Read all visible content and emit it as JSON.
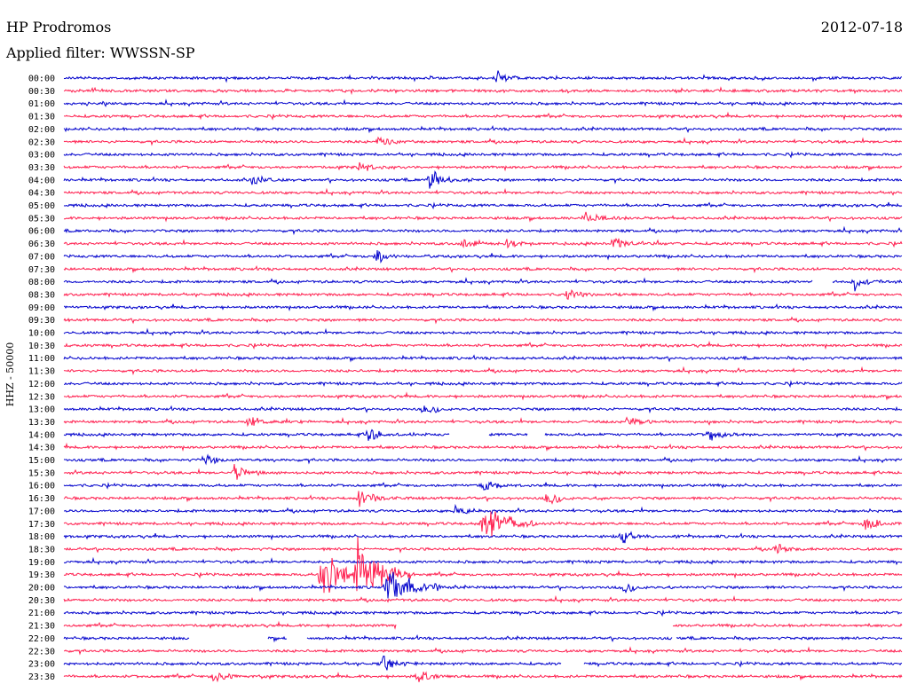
{
  "header": {
    "station": "HP Prodromos",
    "date": "2012-07-18",
    "filter": "Applied filter: WWSSN-SP"
  },
  "colors": {
    "odd_row": "#0000cc",
    "even_row": "#ff1f4f"
  },
  "chart_data": {
    "type": "line",
    "ylabel": "HHZ - 50000",
    "row_labels": [
      "00:00",
      "00:30",
      "01:00",
      "01:30",
      "02:00",
      "02:30",
      "03:00",
      "03:30",
      "04:00",
      "04:30",
      "05:00",
      "05:30",
      "06:00",
      "06:30",
      "07:00",
      "07:30",
      "08:00",
      "08:30",
      "09:00",
      "09:30",
      "10:00",
      "10:30",
      "11:00",
      "11:30",
      "12:00",
      "12:30",
      "13:00",
      "13:30",
      "14:00",
      "14:30",
      "15:00",
      "15:30",
      "16:00",
      "16:30",
      "17:00",
      "17:30",
      "18:00",
      "18:30",
      "19:00",
      "19:30",
      "20:00",
      "20:30",
      "21:00",
      "21:30",
      "22:00",
      "22:30",
      "23:00",
      "23:30"
    ],
    "row_minutes": 30,
    "events": [
      {
        "row": 0,
        "minute": 15.5,
        "amplitude": 8
      },
      {
        "row": 5,
        "minute": 11.3,
        "amplitude": 8
      },
      {
        "row": 7,
        "minute": 10.6,
        "amplitude": 8
      },
      {
        "row": 8,
        "minute": 6.8,
        "amplitude": 10
      },
      {
        "row": 8,
        "minute": 13.1,
        "amplitude": 16
      },
      {
        "row": 11,
        "minute": 18.7,
        "amplitude": 9
      },
      {
        "row": 13,
        "minute": 14.3,
        "amplitude": 7
      },
      {
        "row": 13,
        "minute": 15.9,
        "amplitude": 7
      },
      {
        "row": 13,
        "minute": 19.7,
        "amplitude": 10
      },
      {
        "row": 14,
        "minute": 11.2,
        "amplitude": 9
      },
      {
        "row": 16,
        "minute": 28.3,
        "amplitude": 10
      },
      {
        "row": 17,
        "minute": 18.0,
        "amplitude": 9
      },
      {
        "row": 26,
        "minute": 12.9,
        "amplitude": 5
      },
      {
        "row": 27,
        "minute": 6.6,
        "amplitude": 8
      },
      {
        "row": 27,
        "minute": 20.2,
        "amplitude": 9
      },
      {
        "row": 28,
        "minute": 10.9,
        "amplitude": 9
      },
      {
        "row": 28,
        "minute": 23.1,
        "amplitude": 10
      },
      {
        "row": 30,
        "minute": 5.0,
        "amplitude": 9
      },
      {
        "row": 31,
        "minute": 6.1,
        "amplitude": 11
      },
      {
        "row": 32,
        "minute": 15.0,
        "amplitude": 9
      },
      {
        "row": 33,
        "minute": 10.6,
        "amplitude": 16
      },
      {
        "row": 33,
        "minute": 17.3,
        "amplitude": 9
      },
      {
        "row": 34,
        "minute": 14.0,
        "amplitude": 8
      },
      {
        "row": 35,
        "minute": 15.0,
        "amplitude": 22
      },
      {
        "row": 35,
        "minute": 28.7,
        "amplitude": 14
      },
      {
        "row": 36,
        "minute": 20.0,
        "amplitude": 9
      },
      {
        "row": 37,
        "minute": 25.5,
        "amplitude": 7
      },
      {
        "row": 39,
        "minute": 9.2,
        "amplitude": 42
      },
      {
        "row": 39,
        "minute": 10.5,
        "amplitude": 40
      },
      {
        "row": 40,
        "minute": 11.6,
        "amplitude": 24
      },
      {
        "row": 40,
        "minute": 20.0,
        "amplitude": 7
      },
      {
        "row": 46,
        "minute": 11.4,
        "amplitude": 11
      },
      {
        "row": 47,
        "minute": 5.4,
        "amplitude": 9
      },
      {
        "row": 47,
        "minute": 12.7,
        "amplitude": 11
      }
    ],
    "gaps": [
      {
        "row": 16,
        "from": 26.8,
        "to": 27.5
      },
      {
        "row": 28,
        "from": 13.8,
        "to": 15.2
      },
      {
        "row": 28,
        "from": 16.6,
        "to": 17.2
      },
      {
        "row": 44,
        "from": 4.5,
        "to": 7.3
      },
      {
        "row": 44,
        "from": 8.0,
        "to": 8.7
      },
      {
        "row": 43,
        "from": 11.9,
        "to": 21.8
      },
      {
        "row": 44,
        "from": 21.8,
        "to": 21.9
      },
      {
        "row": 46,
        "from": 17.8,
        "to": 18.6
      }
    ]
  }
}
